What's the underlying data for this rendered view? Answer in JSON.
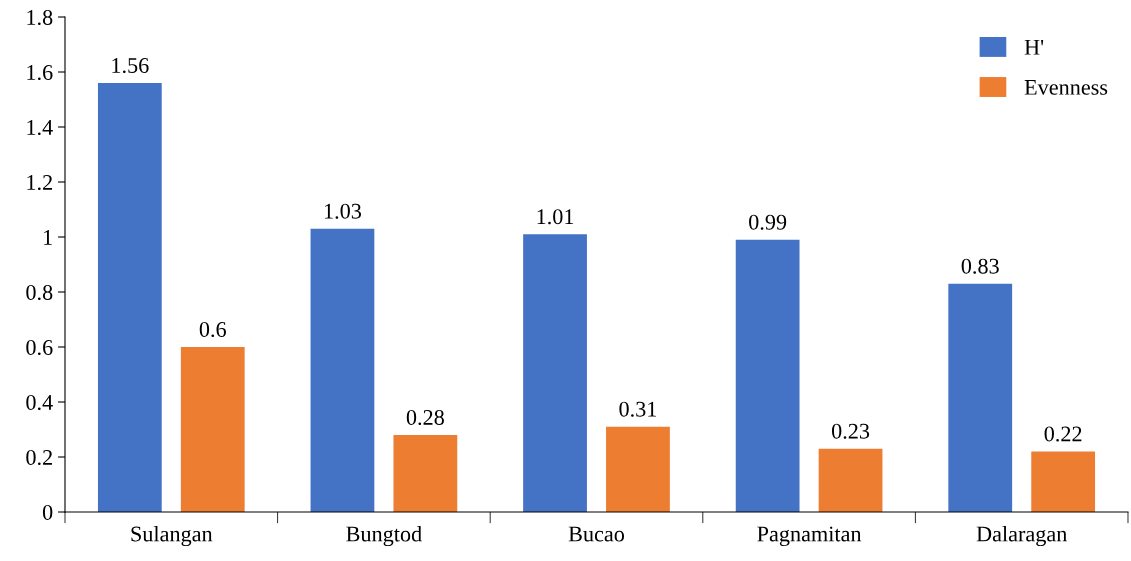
{
  "chart_data": {
    "type": "bar",
    "categories": [
      "Sulangan",
      "Bungtod",
      "Bucao",
      "Pagnamitan",
      "Dalaragan"
    ],
    "series": [
      {
        "name": "H'",
        "color": "#4472c4",
        "values": [
          1.56,
          1.03,
          1.01,
          0.99,
          0.83
        ]
      },
      {
        "name": "Evenness",
        "color": "#ed7d31",
        "values": [
          0.6,
          0.28,
          0.31,
          0.23,
          0.22
        ]
      }
    ],
    "ylim": [
      0,
      1.8
    ],
    "yticks": [
      0,
      0.2,
      0.4,
      0.6,
      0.8,
      1,
      1.2,
      1.4,
      1.6,
      1.8
    ],
    "data_labels": true,
    "legend": "top right",
    "grid": false
  }
}
